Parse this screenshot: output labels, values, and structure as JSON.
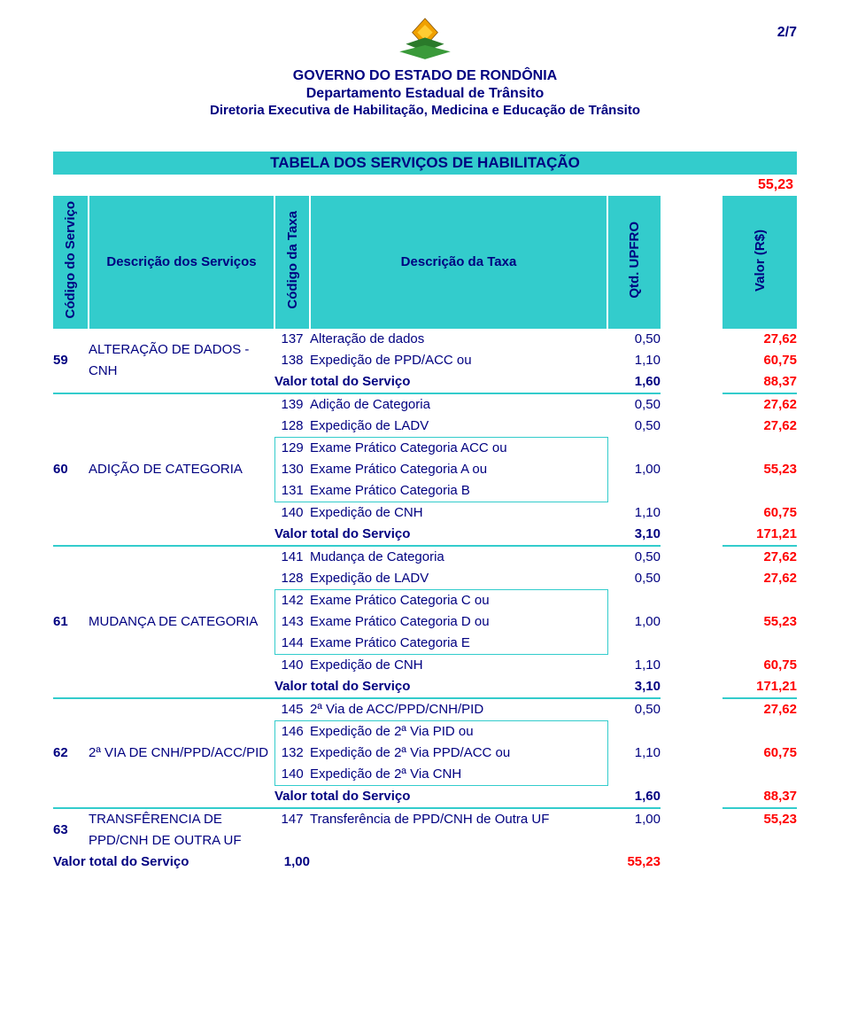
{
  "page_number": "2/7",
  "header": {
    "line1": "GOVERNO DO ESTADO DE RONDÔNIA",
    "line2": "Departamento Estadual de Trânsito",
    "line3": "Diretoria Executiva de Habilitação, Medicina e Educação de Trânsito"
  },
  "colors": {
    "header_bg": "#33cccc",
    "text_navy": "#000080",
    "text_red": "#ff0000",
    "bg_white": "#ffffff"
  },
  "title_bar": "TABELA DOS SERVIÇOS DE HABILITAÇÃO",
  "ref_value": "55,23",
  "columns": {
    "codigo_servico": "Código do Serviço",
    "descricao_servicos": "Descrição dos Serviços",
    "codigo_taxa": "Código da Taxa",
    "descricao_taxa": "Descrição da Taxa",
    "qtd_upfro": "Qtd. UPFRO",
    "valor_rs": "Valor (R$)"
  },
  "services": [
    {
      "code": "59",
      "name": "ALTERAÇÃO DE DADOS - CNH",
      "items": [
        {
          "taxa_code": "137",
          "taxa_desc": "Alteração de dados",
          "qtd": "0,50",
          "valor": "27,62"
        },
        {
          "taxa_code": "138",
          "taxa_desc": "Expedição de PPD/ACC ou",
          "qtd": "1,10",
          "valor": "60,75"
        }
      ],
      "total_label": "Valor total do Serviço",
      "total_qtd": "1,60",
      "total_valor": "88,37"
    },
    {
      "code": "60",
      "name": "ADIÇÃO DE CATEGORIA",
      "items": [
        {
          "taxa_code": "139",
          "taxa_desc": "Adição de Categoria",
          "qtd": "0,50",
          "valor": "27,62"
        },
        {
          "taxa_code": "128",
          "taxa_desc": "Expedição de LADV",
          "qtd": "0,50",
          "valor": "27,62"
        },
        {
          "taxa_code": "129",
          "taxa_desc": "Exame Prático Categoria ACC ou",
          "group": "g1"
        },
        {
          "taxa_code": "130",
          "taxa_desc": "Exame Prático Categoria A ou",
          "qtd": "1,00",
          "valor": "55,23",
          "group": "g1"
        },
        {
          "taxa_code": "131",
          "taxa_desc": "Exame Prático Categoria B",
          "group": "g1"
        },
        {
          "taxa_code": "140",
          "taxa_desc": "Expedição de CNH",
          "qtd": "1,10",
          "valor": "60,75"
        }
      ],
      "total_label": "Valor total do Serviço",
      "total_qtd": "3,10",
      "total_valor": "171,21"
    },
    {
      "code": "61",
      "name": "MUDANÇA DE CATEGORIA",
      "items": [
        {
          "taxa_code": "141",
          "taxa_desc": "Mudança de Categoria",
          "qtd": "0,50",
          "valor": "27,62"
        },
        {
          "taxa_code": "128",
          "taxa_desc": "Expedição de LADV",
          "qtd": "0,50",
          "valor": "27,62"
        },
        {
          "taxa_code": "142",
          "taxa_desc": "Exame Prático Categoria C ou",
          "group": "g2"
        },
        {
          "taxa_code": "143",
          "taxa_desc": "Exame Prático Categoria D ou",
          "qtd": "1,00",
          "valor": "55,23",
          "group": "g2"
        },
        {
          "taxa_code": "144",
          "taxa_desc": "Exame Prático Categoria E",
          "group": "g2"
        },
        {
          "taxa_code": "140",
          "taxa_desc": "Expedição de CNH",
          "qtd": "1,10",
          "valor": "60,75"
        }
      ],
      "total_label": "Valor total do Serviço",
      "total_qtd": "3,10",
      "total_valor": "171,21"
    },
    {
      "code": "62",
      "name": "2ª VIA DE CNH/PPD/ACC/PID",
      "items": [
        {
          "taxa_code": "145",
          "taxa_desc": "2ª Via de ACC/PPD/CNH/PID",
          "qtd": "0,50",
          "valor": "27,62"
        },
        {
          "taxa_code": "146",
          "taxa_desc": "Expedição de 2ª Via PID ou",
          "group": "g3"
        },
        {
          "taxa_code": "132",
          "taxa_desc": "Expedição de 2ª Via PPD/ACC ou",
          "qtd": "1,10",
          "valor": "60,75",
          "group": "g3"
        },
        {
          "taxa_code": "140",
          "taxa_desc": "Expedição de 2ª Via CNH",
          "group": "g3"
        }
      ],
      "total_label": "Valor total do Serviço",
      "total_qtd": "1,60",
      "total_valor": "88,37"
    },
    {
      "code": "63",
      "name": "TRANSFÊRENCIA DE PPD/CNH DE OUTRA UF",
      "items": [
        {
          "taxa_code": "147",
          "taxa_desc": "Transferência de PPD/CNH de Outra UF",
          "qtd": "1,00",
          "valor": "55,23"
        }
      ],
      "total_label": "Valor total do Serviço",
      "total_qtd": "1,00",
      "total_valor": "55,23"
    }
  ]
}
